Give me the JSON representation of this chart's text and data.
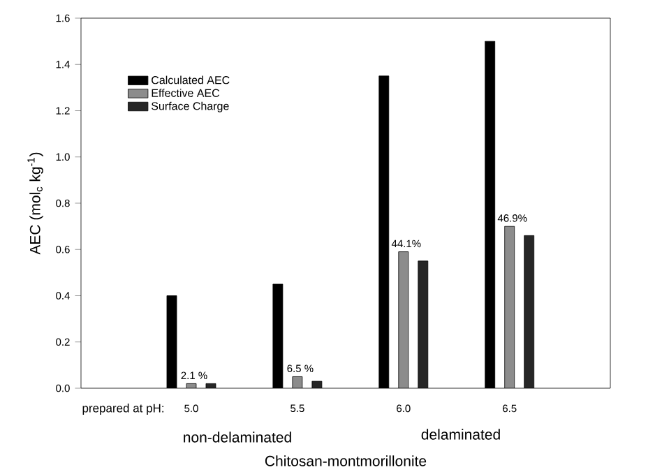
{
  "chart_data": {
    "type": "bar",
    "xlabel": "Chitosan-montmorillonite",
    "ylabel": "AEC (mol$_{c}$ kg$^{-1}$)",
    "categories": [
      "5.0",
      "5.5",
      "6.0",
      "6.5"
    ],
    "series": [
      {
        "name": "Calculated AEC",
        "color": "#000000",
        "values": [
          0.4,
          0.45,
          1.35,
          1.5
        ]
      },
      {
        "name": "Effective AEC",
        "color": "#8c8c8c",
        "values": [
          0.02,
          0.05,
          0.59,
          0.7
        ]
      },
      {
        "name": "Surface Charge",
        "color": "#262626",
        "values": [
          0.02,
          0.03,
          0.55,
          0.66
        ]
      }
    ],
    "ylim": [
      0,
      1.6
    ],
    "yticks": [
      {
        "value": 0,
        "label": "0.0"
      },
      {
        "value": 0.2,
        "label": "0.2"
      },
      {
        "value": 0.4,
        "label": "0.4"
      },
      {
        "value": 0.6,
        "label": "0.6"
      },
      {
        "value": 0.8,
        "label": "0.8"
      },
      {
        "value": 1.0,
        "label": "1.0"
      },
      {
        "value": 1.2,
        "label": "1.2"
      },
      {
        "value": 1.4,
        "label": "1.4"
      },
      {
        "value": 1.6,
        "label": "1.6"
      }
    ],
    "legend": "top left",
    "grid": false,
    "annotations": [
      "prepared at pH:",
      "non-delaminated",
      "delaminated",
      {
        "text": "2.1 %",
        "x": "5.0",
        "y": 0.02
      },
      {
        "text": "6.5 %",
        "x": "5.5",
        "y": 0.05
      },
      {
        "text": "44.1%",
        "x": "6.0",
        "y": 0.59
      },
      {
        "text": "46.9%",
        "x": "6.5",
        "y": 0.7
      }
    ]
  }
}
